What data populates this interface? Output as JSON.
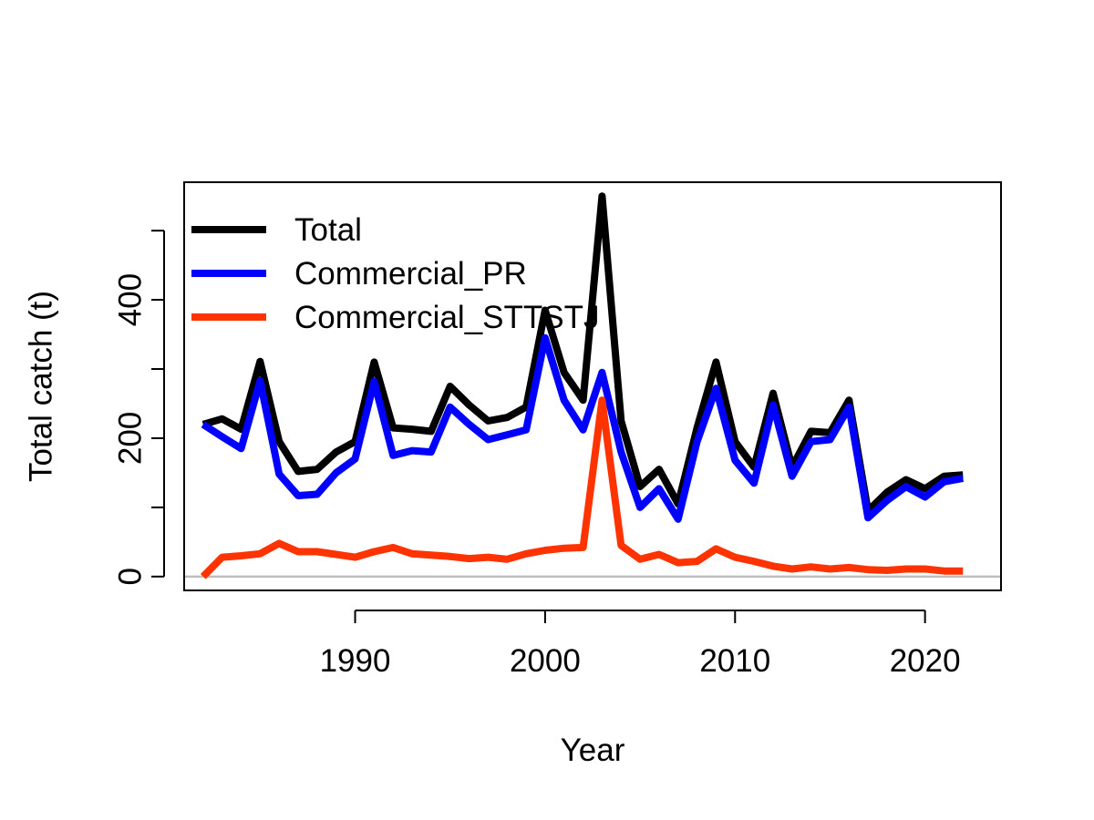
{
  "chart_data": {
    "type": "line",
    "title": "",
    "xlabel": "Year",
    "ylabel": "Total catch (t)",
    "xlim": [
      1981,
      2024
    ],
    "ylim": [
      -20,
      570
    ],
    "x_ticks": [
      1990,
      2000,
      2010,
      2020
    ],
    "y_ticks": [
      0,
      100,
      200,
      300,
      400,
      500
    ],
    "y_tick_labels": [
      "0",
      "",
      "200",
      "",
      "400",
      ""
    ],
    "legend_position": "top-left",
    "zero_line": true,
    "x": [
      1982,
      1983,
      1984,
      1985,
      1986,
      1987,
      1988,
      1989,
      1990,
      1991,
      1992,
      1993,
      1994,
      1995,
      1996,
      1997,
      1998,
      1999,
      2000,
      2001,
      2002,
      2003,
      2004,
      2005,
      2006,
      2007,
      2008,
      2009,
      2010,
      2011,
      2012,
      2013,
      2014,
      2015,
      2016,
      2017,
      2018,
      2019,
      2020,
      2021,
      2022
    ],
    "series": [
      {
        "name": "Total",
        "color": "#000000",
        "values": [
          220,
          228,
          213,
          311,
          195,
          152,
          155,
          180,
          195,
          310,
          215,
          213,
          210,
          275,
          248,
          225,
          230,
          245,
          385,
          295,
          255,
          550,
          225,
          130,
          155,
          105,
          215,
          310,
          195,
          158,
          265,
          158,
          210,
          208,
          255,
          95,
          122,
          140,
          127,
          145,
          147
        ]
      },
      {
        "name": "Commercial_PR",
        "color": "#0000ff",
        "values": [
          220,
          202,
          185,
          283,
          148,
          117,
          119,
          150,
          170,
          282,
          175,
          182,
          180,
          245,
          220,
          198,
          205,
          212,
          345,
          255,
          212,
          295,
          180,
          100,
          127,
          83,
          195,
          272,
          168,
          135,
          248,
          145,
          195,
          198,
          245,
          85,
          110,
          130,
          115,
          137,
          142
        ]
      },
      {
        "name": "Commercial_STTSTJ",
        "color": "#ff3300",
        "values": [
          0,
          28,
          30,
          33,
          48,
          36,
          36,
          32,
          28,
          36,
          42,
          33,
          31,
          29,
          26,
          28,
          25,
          33,
          38,
          41,
          42,
          255,
          45,
          25,
          32,
          20,
          22,
          40,
          28,
          22,
          15,
          11,
          14,
          11,
          13,
          10,
          9,
          11,
          11,
          8,
          8
        ]
      }
    ]
  }
}
